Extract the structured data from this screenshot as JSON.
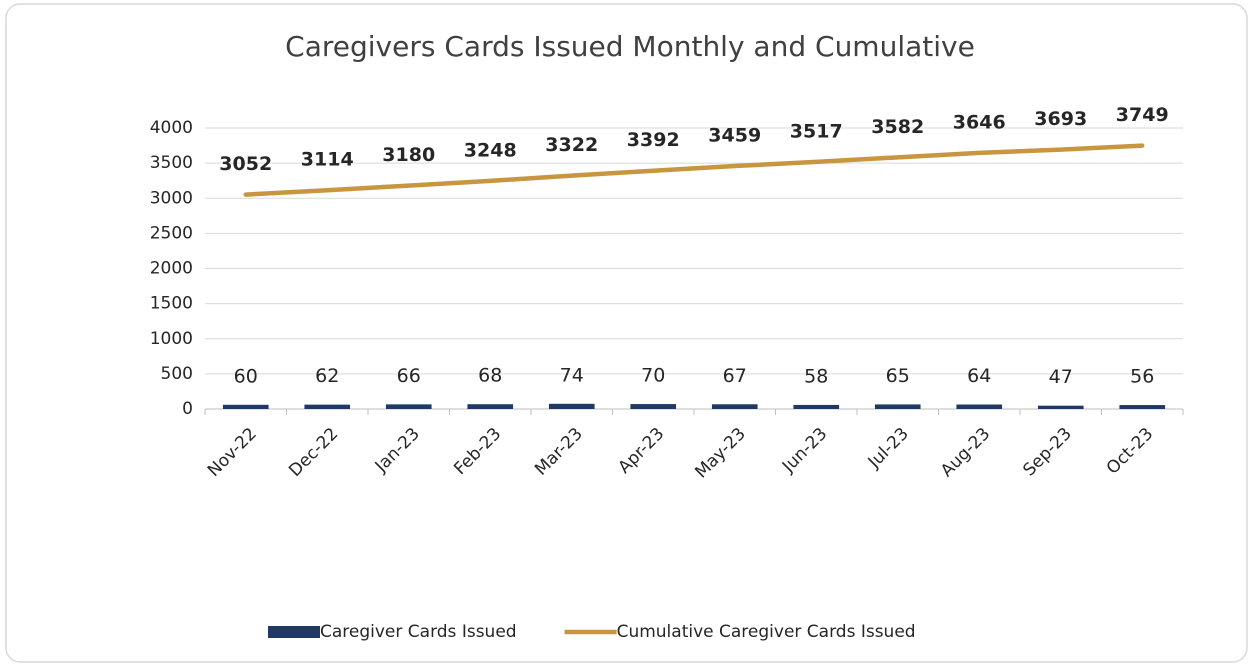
{
  "chart_data": {
    "type": "bar",
    "title": "Caregivers Cards Issued Monthly and Cumulative",
    "categories": [
      "Nov-22",
      "Dec-22",
      "Jan-23",
      "Feb-23",
      "Mar-23",
      "Apr-23",
      "May-23",
      "Jun-23",
      "Jul-23",
      "Aug-23",
      "Sep-23",
      "Oct-23"
    ],
    "series": [
      {
        "name": "Caregiver Cards Issued",
        "type": "bar",
        "color": "#1f3864",
        "values": [
          60,
          62,
          66,
          68,
          74,
          70,
          67,
          58,
          65,
          64,
          47,
          56
        ]
      },
      {
        "name": "Cumulative Caregiver Cards Issued",
        "type": "line",
        "color": "#c8963e",
        "values": [
          3052,
          3114,
          3180,
          3248,
          3322,
          3392,
          3459,
          3517,
          3582,
          3646,
          3693,
          3749
        ]
      }
    ],
    "ylim": [
      0,
      4000
    ],
    "yticks": [
      0,
      500,
      1000,
      1500,
      2000,
      2500,
      3000,
      3500,
      4000
    ],
    "grid": true,
    "legend": "bottom"
  }
}
